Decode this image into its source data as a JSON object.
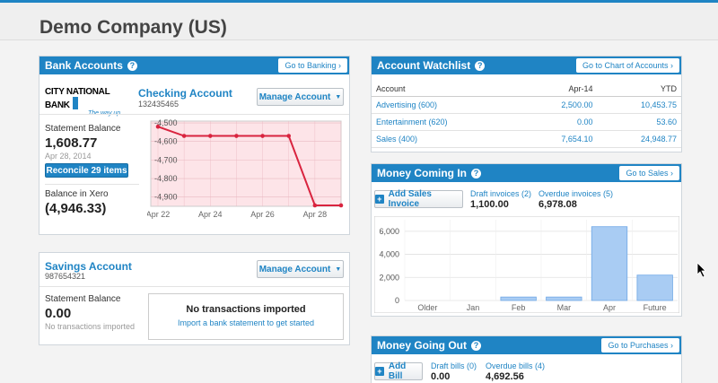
{
  "header": {
    "title": "Demo Company (US)"
  },
  "bank_accounts": {
    "title": "Bank Accounts",
    "link": "Go to Banking ›",
    "checking": {
      "bank_logo": "CITY NATIONAL BANK",
      "bank_tagline": "The way up",
      "name": "Checking Account",
      "number": "132435465",
      "manage_label": "Manage Account",
      "statement_balance_label": "Statement Balance",
      "statement_balance": "1,608.77",
      "statement_date": "Apr 28, 2014",
      "reconcile_label": "Reconcile 29 items",
      "xero_balance_label": "Balance in Xero",
      "xero_balance": "(4,946.33)"
    },
    "savings": {
      "name": "Savings Account",
      "number": "987654321",
      "manage_label": "Manage Account",
      "statement_balance_label": "Statement Balance",
      "statement_balance": "0.00",
      "no_tx_small": "No transactions imported",
      "no_tx_title": "No transactions imported",
      "import_link": "Import a bank statement to get started"
    }
  },
  "watchlist": {
    "title": "Account Watchlist",
    "link": "Go to Chart of Accounts ›",
    "columns": [
      "Account",
      "Apr-14",
      "YTD"
    ],
    "rows": [
      {
        "account": "Advertising (600)",
        "month": "2,500.00",
        "ytd": "10,453.75"
      },
      {
        "account": "Entertainment (620)",
        "month": "0.00",
        "ytd": "53.60"
      },
      {
        "account": "Sales (400)",
        "month": "7,654.10",
        "ytd": "24,948.77"
      }
    ]
  },
  "money_in": {
    "title": "Money Coming In",
    "link": "Go to Sales ›",
    "add_label": "Add Sales Invoice",
    "draft_label": "Draft invoices (2)",
    "draft_value": "1,100.00",
    "overdue_label": "Overdue invoices (5)",
    "overdue_value": "6,978.08"
  },
  "money_out": {
    "title": "Money Going Out",
    "link": "Go to Purchases ›",
    "add_label": "Add Bill",
    "draft_label": "Draft bills (0)",
    "draft_value": "0.00",
    "overdue_label": "Overdue bills (4)",
    "overdue_value": "4,692.56"
  },
  "colors": {
    "accent": "#1f84c4",
    "line": "#d9243f",
    "chart_pink": "#fde4e8",
    "bar": "#a9ccf3"
  },
  "chart_data": [
    {
      "type": "line",
      "x": [
        "Apr 22",
        "Apr 23",
        "Apr 24",
        "Apr 25",
        "Apr 26",
        "Apr 27",
        "Apr 28",
        "Apr 29"
      ],
      "xticks": [
        "Apr 22",
        "Apr 24",
        "Apr 26",
        "Apr 28"
      ],
      "values": [
        -4520,
        -4570,
        -4570,
        -4570,
        -4570,
        -4570,
        -4945,
        -4945
      ],
      "ylim": [
        -4950,
        -4490
      ],
      "yticks": [
        "-4,500",
        "-4,600",
        "-4,700",
        "-4,800",
        "-4,900"
      ],
      "ytick_values": [
        -4500,
        -4600,
        -4700,
        -4800,
        -4900
      ],
      "grid": true
    },
    {
      "type": "bar",
      "categories": [
        "Older",
        "Jan",
        "Feb",
        "Mar",
        "Apr",
        "Future"
      ],
      "values": [
        0,
        0,
        300,
        300,
        6400,
        2200
      ],
      "ylim": [
        0,
        7000
      ],
      "yticks": [
        "6,000",
        "4,000",
        "2,000",
        "0"
      ],
      "ytick_values": [
        6000,
        4000,
        2000,
        0
      ],
      "grid": true
    }
  ]
}
